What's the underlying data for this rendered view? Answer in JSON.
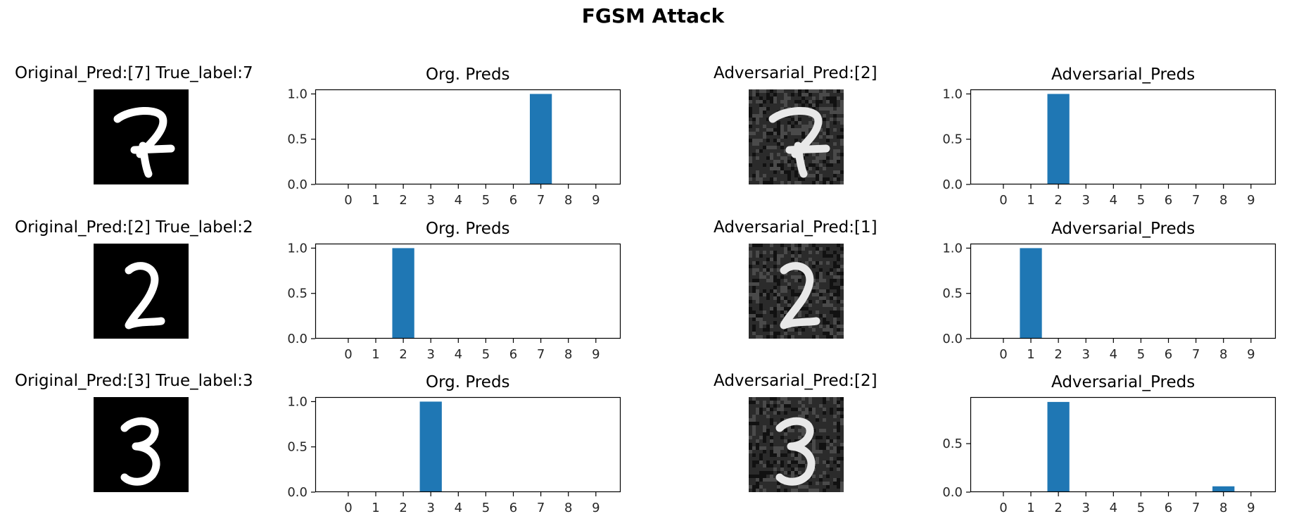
{
  "suptitle": "FGSM Attack",
  "rows": [
    {
      "original_title": "Original_Pred:[7] True_label:7",
      "original_digit": "7",
      "adversarial_title": "Adversarial_Pred:[2]",
      "original_plot_title": "Org. Preds",
      "adversarial_plot_title": "Adversarial_Preds"
    },
    {
      "original_title": "Original_Pred:[2] True_label:2",
      "original_digit": "2",
      "adversarial_title": "Adversarial_Pred:[1]",
      "original_plot_title": "Org. Preds",
      "adversarial_plot_title": "Adversarial_Preds"
    },
    {
      "original_title": "Original_Pred:[3] True_label:3",
      "original_digit": "3",
      "adversarial_title": "Adversarial_Pred:[2]",
      "original_plot_title": "Org. Preds",
      "adversarial_plot_title": "Adversarial_Preds"
    }
  ],
  "chart_data": [
    {
      "type": "bar",
      "title": "Org. Preds",
      "categories": [
        "0",
        "1",
        "2",
        "3",
        "4",
        "5",
        "6",
        "7",
        "8",
        "9"
      ],
      "values": [
        0,
        0,
        0,
        0,
        0,
        0,
        0,
        1.0,
        0,
        0
      ],
      "ylim": [
        0,
        1.05
      ],
      "yticks": [
        "0.0",
        "0.5",
        "1.0"
      ]
    },
    {
      "type": "bar",
      "title": "Adversarial_Preds",
      "categories": [
        "0",
        "1",
        "2",
        "3",
        "4",
        "5",
        "6",
        "7",
        "8",
        "9"
      ],
      "values": [
        0,
        0,
        1.0,
        0,
        0,
        0,
        0,
        0,
        0,
        0
      ],
      "ylim": [
        0,
        1.05
      ],
      "yticks": [
        "0.0",
        "0.5",
        "1.0"
      ]
    },
    {
      "type": "bar",
      "title": "Org. Preds",
      "categories": [
        "0",
        "1",
        "2",
        "3",
        "4",
        "5",
        "6",
        "7",
        "8",
        "9"
      ],
      "values": [
        0,
        0,
        1.0,
        0,
        0,
        0,
        0,
        0,
        0,
        0
      ],
      "ylim": [
        0,
        1.05
      ],
      "yticks": [
        "0.0",
        "0.5",
        "1.0"
      ]
    },
    {
      "type": "bar",
      "title": "Adversarial_Preds",
      "categories": [
        "0",
        "1",
        "2",
        "3",
        "4",
        "5",
        "6",
        "7",
        "8",
        "9"
      ],
      "values": [
        0,
        1.0,
        0,
        0,
        0,
        0,
        0,
        0,
        0,
        0
      ],
      "ylim": [
        0,
        1.05
      ],
      "yticks": [
        "0.0",
        "0.5",
        "1.0"
      ]
    },
    {
      "type": "bar",
      "title": "Org. Preds",
      "categories": [
        "0",
        "1",
        "2",
        "3",
        "4",
        "5",
        "6",
        "7",
        "8",
        "9"
      ],
      "values": [
        0,
        0,
        0,
        1.0,
        0,
        0,
        0,
        0,
        0,
        0
      ],
      "ylim": [
        0,
        1.05
      ],
      "yticks": [
        "0.0",
        "0.5",
        "1.0"
      ]
    },
    {
      "type": "bar",
      "title": "Adversarial_Preds",
      "categories": [
        "0",
        "1",
        "2",
        "3",
        "4",
        "5",
        "6",
        "7",
        "8",
        "9"
      ],
      "values": [
        0,
        0,
        0.93,
        0,
        0,
        0,
        0,
        0,
        0.06,
        0
      ],
      "ylim": [
        0,
        0.98
      ],
      "yticks": [
        "0.0",
        "0.5"
      ]
    }
  ],
  "colors": {
    "bar": "#1f77b4",
    "axis": "#000000",
    "text": "#262626"
  }
}
